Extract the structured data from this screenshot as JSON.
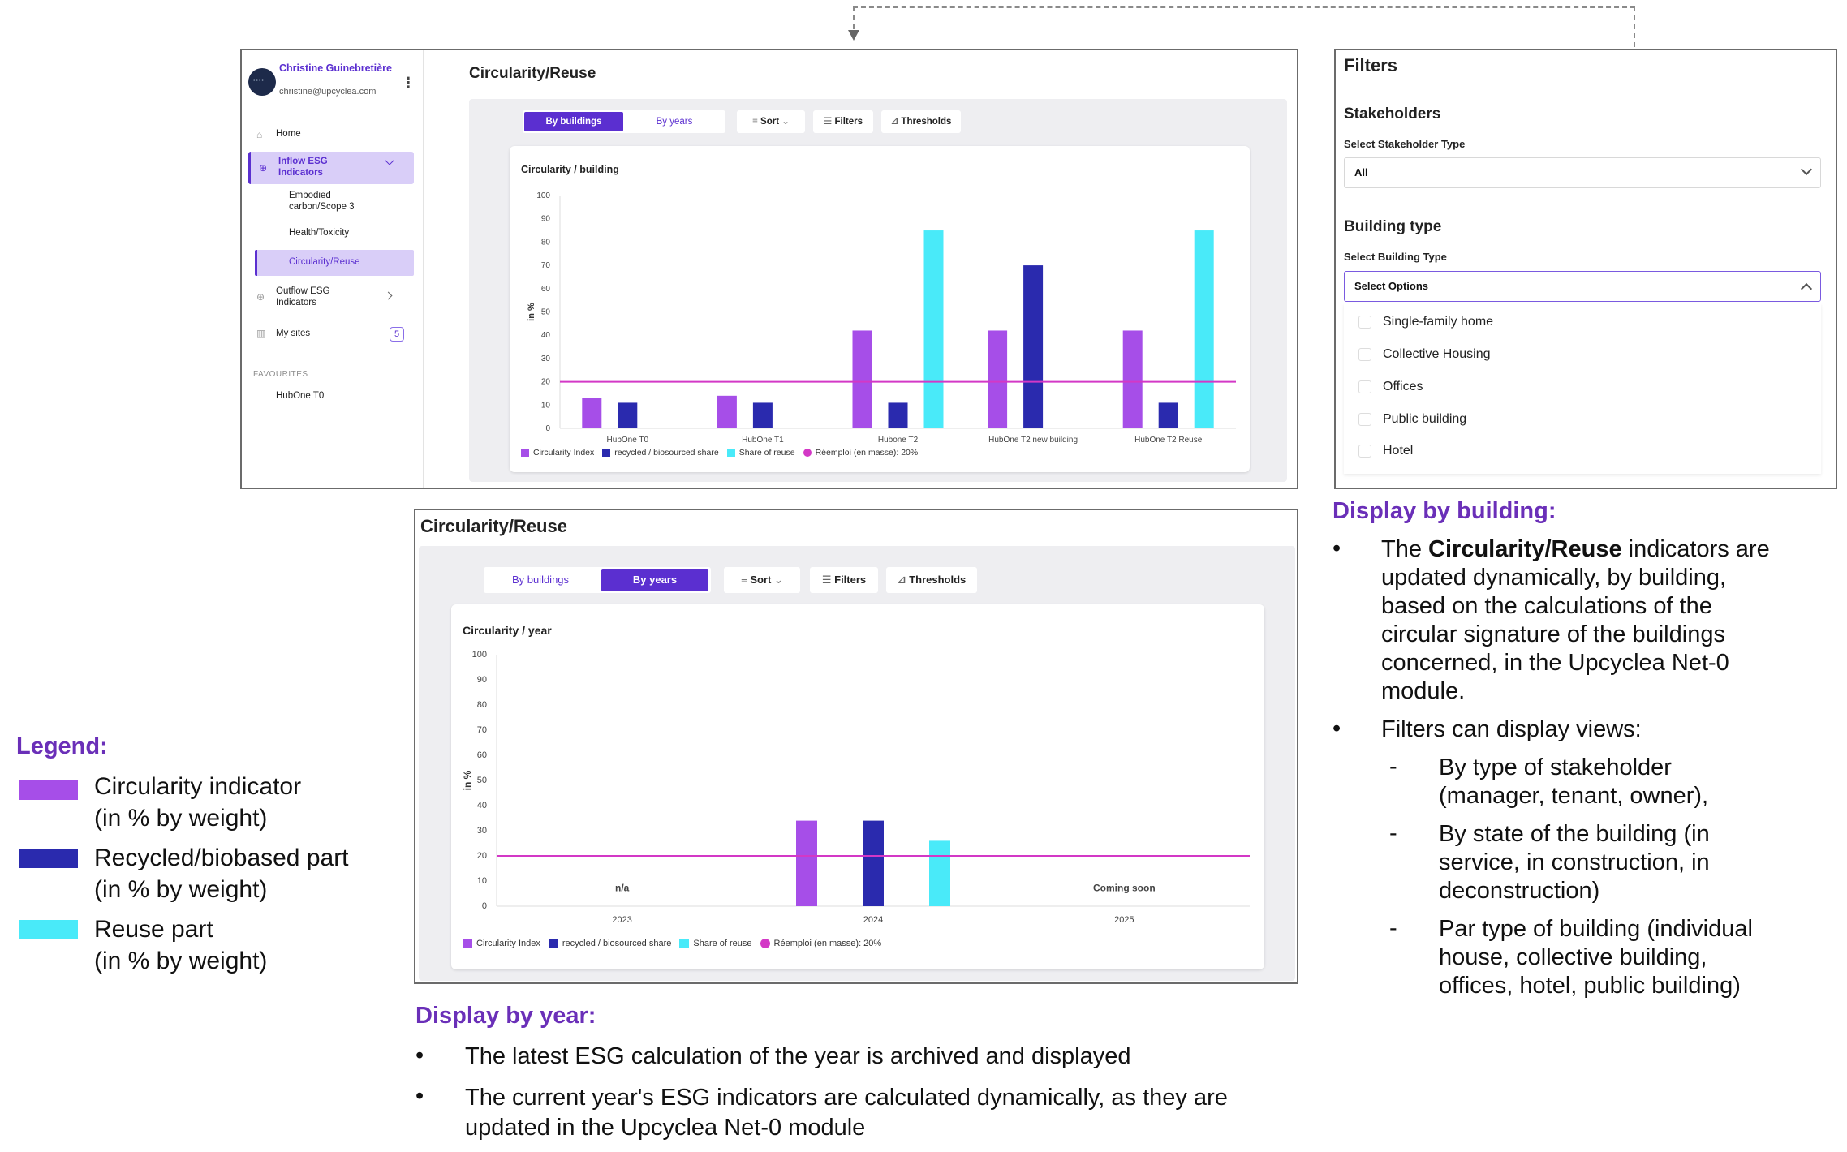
{
  "sidebar": {
    "user_name": "Christine Guinebretière",
    "user_email": "christine@upcyclea.com",
    "items": [
      {
        "label": "Home"
      },
      {
        "label": "Inflow ESG Indicators"
      },
      {
        "label": "Embodied carbon/Scope 3"
      },
      {
        "label": "Health/Toxicity"
      },
      {
        "label": "Circularity/Reuse"
      },
      {
        "label": "Outflow ESG Indicators"
      },
      {
        "label": "My sites",
        "badge": "5"
      }
    ],
    "favourites_title": "FAVOURITES",
    "favourites": [
      "HubOne T0"
    ]
  },
  "top_panel": {
    "title": "Circularity/Reuse",
    "tabs": [
      "By buildings",
      "By years"
    ],
    "active_tab": "By buildings",
    "tools": [
      "Sort",
      "Filters",
      "Thresholds"
    ]
  },
  "bottom_panel": {
    "title": "Circularity/Reuse",
    "tabs": [
      "By buildings",
      "By years"
    ],
    "active_tab": "By years",
    "tools": [
      "Sort",
      "Filters",
      "Thresholds"
    ]
  },
  "filters": {
    "title": "Filters",
    "stakeholders_title": "Stakeholders",
    "stakeholder_label": "Select Stakeholder Type",
    "stakeholder_value": "All",
    "building_type_title": "Building type",
    "building_type_label": "Select Building Type",
    "building_type_placeholder": "Select Options",
    "options": [
      "Single-family home",
      "Collective Housing",
      "Offices",
      "Public building",
      "Hotel"
    ]
  },
  "legend_panel": {
    "title": "Legend:",
    "items": [
      {
        "line1": "Circularity indicator",
        "line2": "(in % by weight)",
        "color": "#a64ee8"
      },
      {
        "line1": "Recycled/biobased part",
        "line2": "(in % by weight)",
        "color": "#2a2aae"
      },
      {
        "line1": "Reuse part",
        "line2": "(in % by weight)",
        "color": "#49eaf9"
      }
    ]
  },
  "annotations": {
    "by_building_title": "Display by building:",
    "by_building_b1_pre": "The ",
    "by_building_b1_bold": "Circularity/Reuse",
    "by_building_b1_post": " indicators are updated dynamically, by building, based on the calculations of the circular signature of the buildings concerned, in the Upcyclea Net-0 module.",
    "by_building_b2": "Filters can display views:",
    "by_building_subs": [
      "By type of stakeholder (manager, tenant, owner),",
      "By state of the building (in service, in construction, in deconstruction)",
      "Par type of building (individual house, collective building, offices, hotel, public building)"
    ],
    "by_year_title": "Display by year:",
    "by_year_b1": "The latest ESG calculation of the year is archived and displayed",
    "by_year_b2": "The current year's ESG indicators are calculated dynamically, as they are updated in the Upcyclea Net-0 module"
  },
  "chart_data": [
    {
      "type": "bar",
      "title": "Circularity / building",
      "ylabel": "in %",
      "ylim": [
        0,
        100
      ],
      "yticks": [
        "100",
        "90",
        "80",
        "70",
        "60",
        "50",
        "40",
        "30",
        "20",
        "10",
        "0"
      ],
      "categories": [
        "HubOne T0",
        "HubOne T1",
        "Hubone T2",
        "HubOne T2 new building",
        "HubOne T2 Reuse"
      ],
      "series": [
        {
          "name": "Circularity Index",
          "color": "#a64ee8",
          "values": [
            13,
            14,
            42,
            42,
            42
          ]
        },
        {
          "name": "recycled / biosourced share",
          "color": "#2a2aae",
          "values": [
            11,
            11,
            11,
            70,
            11
          ]
        },
        {
          "name": "Share of reuse",
          "color": "#49eaf9",
          "values": [
            0,
            0,
            85,
            0,
            85
          ]
        }
      ],
      "threshold": {
        "name": "Réemploi (en masse): 20%",
        "value": 20,
        "color": "#d338c6"
      }
    },
    {
      "type": "bar",
      "title": "Circularity / year",
      "ylabel": "in %",
      "ylim": [
        0,
        100
      ],
      "yticks": [
        "100",
        "90",
        "80",
        "70",
        "60",
        "50",
        "40",
        "30",
        "20",
        "10",
        "0"
      ],
      "categories": [
        "2023",
        "2024",
        "2025"
      ],
      "category_notes": [
        "n/a",
        "",
        "Coming soon"
      ],
      "series": [
        {
          "name": "Circularity Index",
          "color": "#a64ee8",
          "values": [
            0,
            34,
            0
          ]
        },
        {
          "name": "recycled / biosourced share",
          "color": "#2a2aae",
          "values": [
            0,
            34,
            0
          ]
        },
        {
          "name": "Share of reuse",
          "color": "#49eaf9",
          "values": [
            0,
            26,
            0
          ]
        }
      ],
      "threshold": {
        "name": "Réemploi (en masse): 20%",
        "value": 20,
        "color": "#d338c6"
      }
    }
  ]
}
